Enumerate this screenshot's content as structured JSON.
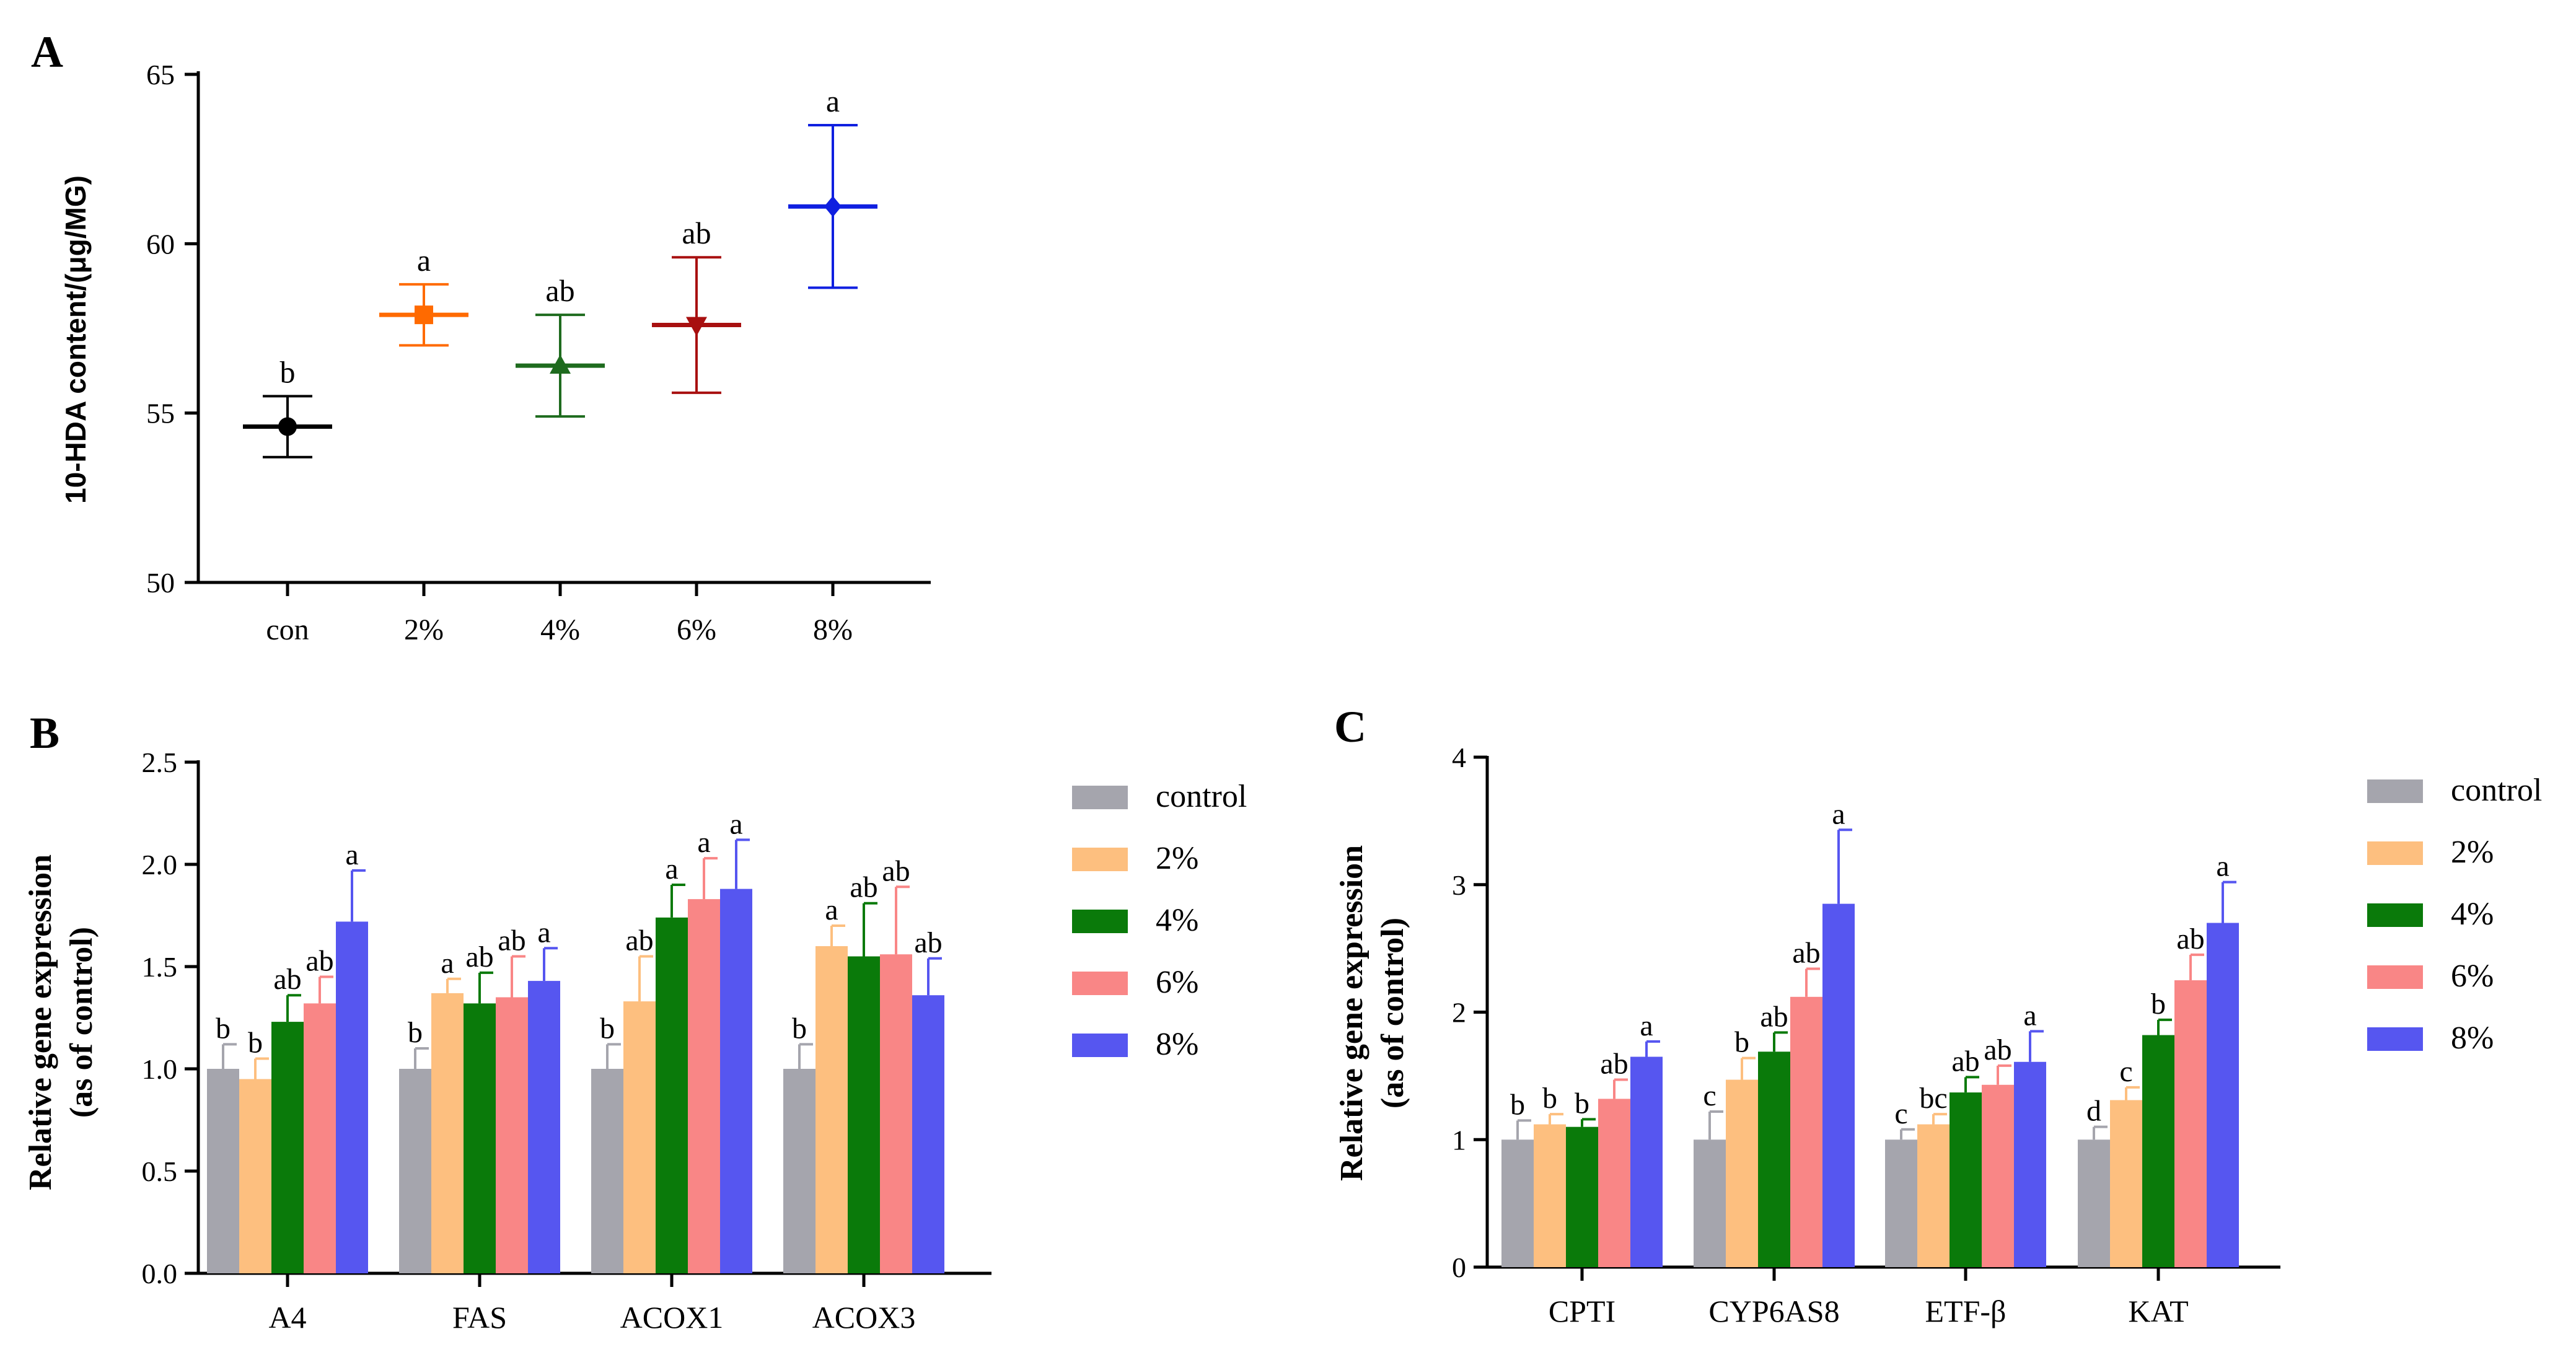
{
  "colors": {
    "axis": "#000000",
    "control": "#a5a5ad",
    "p2": "#fdbf7f",
    "p4": "#0a7a0a",
    "p6": "#f98686",
    "p8": "#5656f0",
    "A_con": "#000000",
    "A_2": "#ff6a00",
    "A_4": "#1e6b1e",
    "A_6": "#a81010",
    "A_8": "#0f1fe0"
  },
  "chart_data": [
    {
      "id": "A",
      "panel_label": "A",
      "type": "scatter",
      "ylabel": "10-HDA content/(μg/MG)",
      "ylim": [
        50,
        65
      ],
      "yticks": [
        "50",
        "55",
        "60",
        "65"
      ],
      "categories": [
        "con",
        "2%",
        "4%",
        "6%",
        "8%"
      ],
      "markers": [
        "circle",
        "square",
        "triangle",
        "triangle-down",
        "diamond"
      ],
      "means": [
        54.6,
        57.9,
        56.4,
        57.6,
        61.1
      ],
      "upper": [
        55.5,
        58.8,
        57.9,
        59.6,
        63.5
      ],
      "lower": [
        53.7,
        57.0,
        54.9,
        55.6,
        58.7
      ],
      "letters": [
        "b",
        "a",
        "ab",
        "ab",
        "a"
      ]
    },
    {
      "id": "B",
      "panel_label": "B",
      "type": "bar",
      "ylabel_line1": "Relative gene expression",
      "ylabel_line2": "(as of control)",
      "ylim": [
        0,
        2.5
      ],
      "yticks": [
        "0.0",
        "0.5",
        "1.0",
        "1.5",
        "2.0",
        "2.5"
      ],
      "categories": [
        "A4",
        "FAS",
        "ACOX1",
        "ACOX3"
      ],
      "legend": [
        "control",
        "2%",
        "4%",
        "6%",
        "8%"
      ],
      "series": [
        {
          "name": "control",
          "values": [
            1.0,
            1.0,
            1.0,
            1.0
          ],
          "err": [
            0.12,
            0.1,
            0.12,
            0.12
          ],
          "letters": [
            "b",
            "b",
            "b",
            "b"
          ]
        },
        {
          "name": "2%",
          "values": [
            0.95,
            1.37,
            1.33,
            1.6
          ],
          "err": [
            0.1,
            0.07,
            0.22,
            0.1
          ],
          "letters": [
            "b",
            "a",
            "ab",
            "a"
          ]
        },
        {
          "name": "4%",
          "values": [
            1.23,
            1.32,
            1.74,
            1.55
          ],
          "err": [
            0.13,
            0.15,
            0.16,
            0.26
          ],
          "letters": [
            "ab",
            "ab",
            "a",
            "ab"
          ]
        },
        {
          "name": "6%",
          "values": [
            1.32,
            1.35,
            1.83,
            1.56
          ],
          "err": [
            0.13,
            0.2,
            0.2,
            0.33
          ],
          "letters": [
            "ab",
            "ab",
            "a",
            "ab"
          ]
        },
        {
          "name": "8%",
          "values": [
            1.72,
            1.43,
            1.88,
            1.36
          ],
          "err": [
            0.25,
            0.16,
            0.24,
            0.18
          ],
          "letters": [
            "a",
            "a",
            "a",
            "ab"
          ]
        }
      ]
    },
    {
      "id": "C",
      "panel_label": "C",
      "type": "bar",
      "ylabel_line1": "Relative gene expression",
      "ylabel_line2": "(as of control)",
      "ylim": [
        0,
        4
      ],
      "yticks": [
        "0",
        "1",
        "2",
        "3",
        "4"
      ],
      "categories": [
        "CPTI",
        "CYP6AS8",
        "ETF-β",
        "KAT"
      ],
      "legend": [
        "control",
        "2%",
        "4%",
        "6%",
        "8%"
      ],
      "series": [
        {
          "name": "control",
          "values": [
            1.0,
            1.0,
            1.0,
            1.0
          ],
          "err": [
            0.15,
            0.22,
            0.08,
            0.1
          ],
          "letters": [
            "b",
            "c",
            "c",
            "d"
          ]
        },
        {
          "name": "2%",
          "values": [
            1.12,
            1.47,
            1.12,
            1.31
          ],
          "err": [
            0.08,
            0.17,
            0.08,
            0.1
          ],
          "letters": [
            "b",
            "b",
            "bc",
            "c"
          ]
        },
        {
          "name": "4%",
          "values": [
            1.1,
            1.69,
            1.37,
            1.82
          ],
          "err": [
            0.06,
            0.15,
            0.12,
            0.12
          ],
          "letters": [
            "b",
            "ab",
            "ab",
            "b"
          ]
        },
        {
          "name": "6%",
          "values": [
            1.32,
            2.12,
            1.43,
            2.25
          ],
          "err": [
            0.15,
            0.22,
            0.15,
            0.2
          ],
          "letters": [
            "ab",
            "ab",
            "ab",
            "ab"
          ]
        },
        {
          "name": "8%",
          "values": [
            1.65,
            2.85,
            1.61,
            2.7
          ],
          "err": [
            0.12,
            0.58,
            0.24,
            0.32
          ],
          "letters": [
            "a",
            "a",
            "a",
            "a"
          ]
        }
      ]
    }
  ]
}
